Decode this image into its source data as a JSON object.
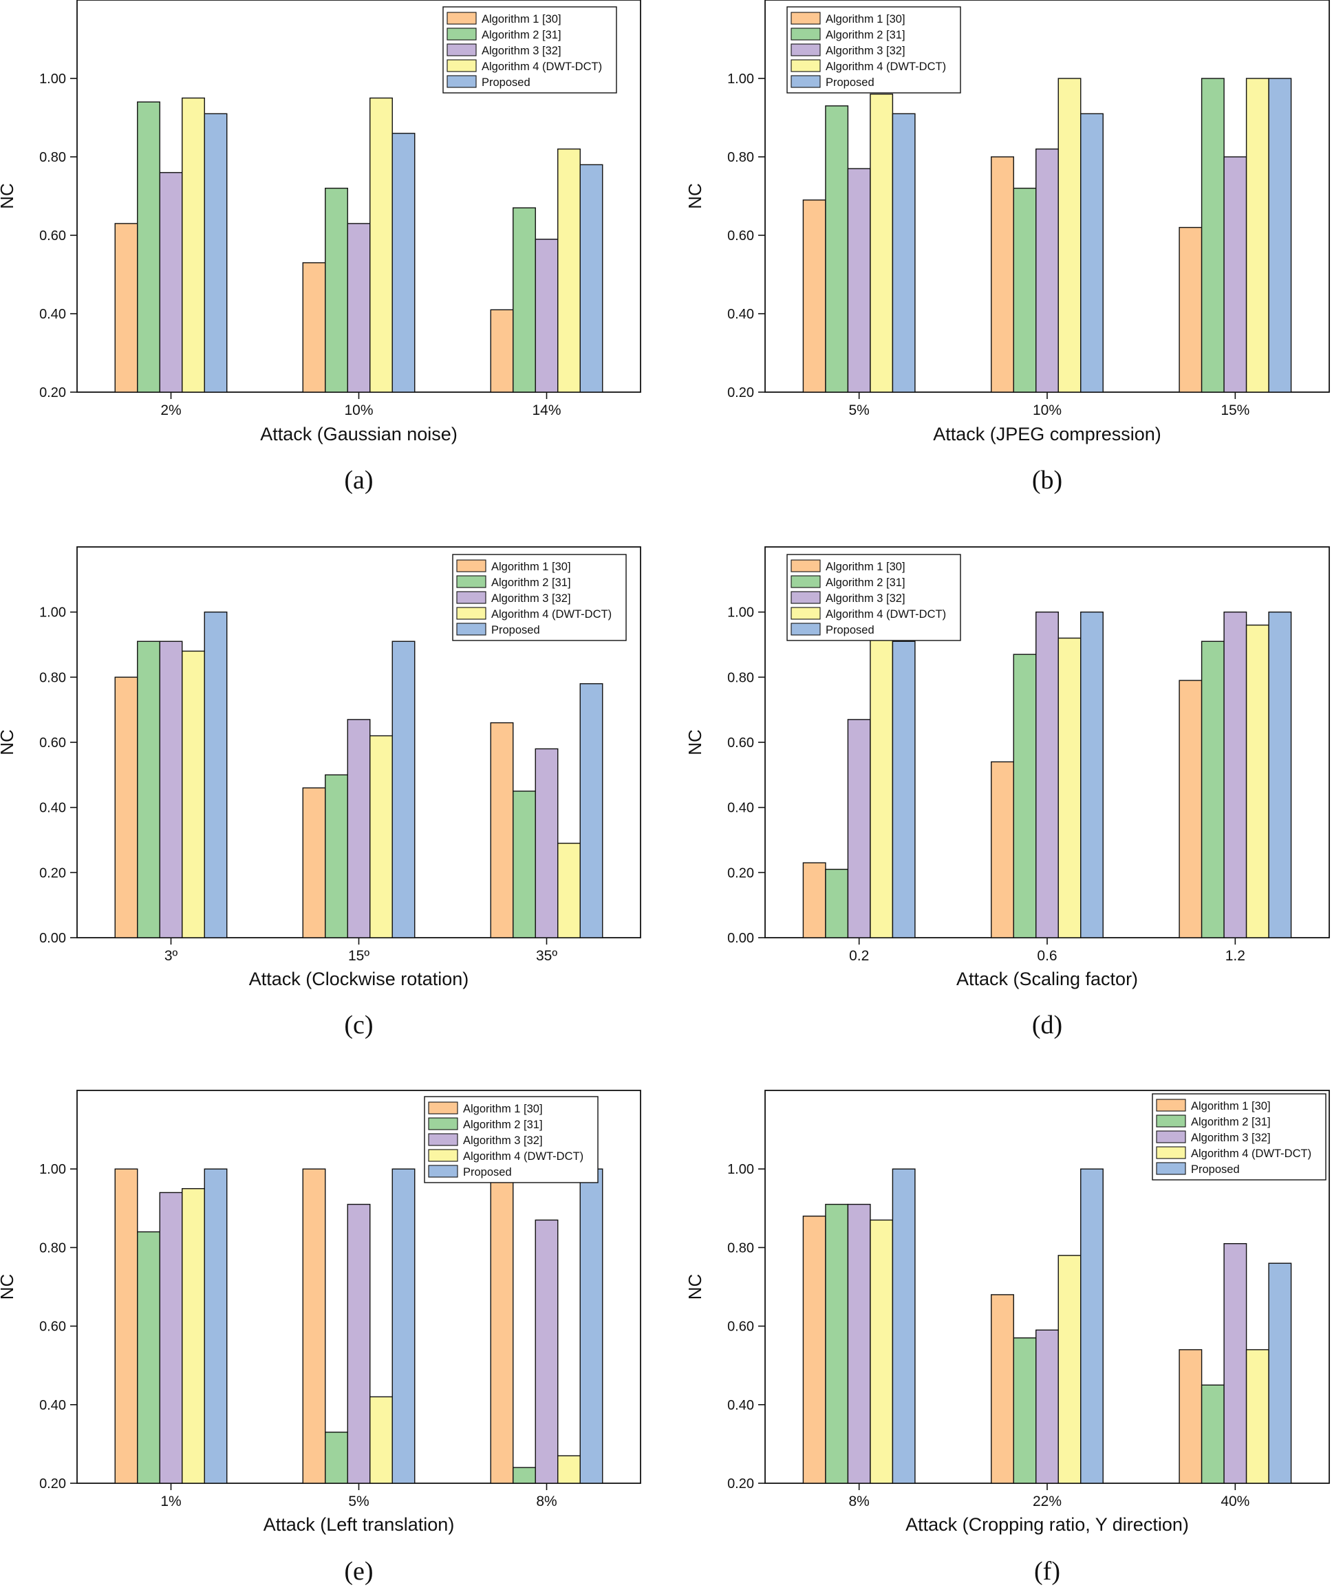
{
  "colors": {
    "series": [
      "#fdc791",
      "#9dd39c",
      "#c3b2d8",
      "#fbf6a2",
      "#9dbbe1"
    ],
    "stroke": "#111111"
  },
  "chart_data": [
    {
      "type": "bar",
      "panel": "(a)",
      "xlabel": "Attack (Gaussian noise)",
      "ylabel": "NC",
      "ylim": [
        0.2,
        1.2
      ],
      "yticks": [
        "0.20",
        "0.40",
        "0.60",
        "0.80",
        "1.00"
      ],
      "categories": [
        "2%",
        "10%",
        "14%"
      ],
      "legend_position": "top-right",
      "series": [
        {
          "name": "Algorithm 1 [30]",
          "values": [
            0.63,
            0.53,
            0.41
          ]
        },
        {
          "name": "Algorithm 2 [31]",
          "values": [
            0.94,
            0.72,
            0.67
          ]
        },
        {
          "name": "Algorithm 3 [32]",
          "values": [
            0.76,
            0.63,
            0.59
          ]
        },
        {
          "name": "Algorithm 4 (DWT-DCT)",
          "values": [
            0.95,
            0.95,
            0.82
          ]
        },
        {
          "name": "Proposed",
          "values": [
            0.91,
            0.86,
            0.78
          ]
        }
      ]
    },
    {
      "type": "bar",
      "panel": "(b)",
      "xlabel": "Attack (JPEG compression)",
      "ylabel": "NC",
      "ylim": [
        0.2,
        1.2
      ],
      "yticks": [
        "0.20",
        "0.40",
        "0.60",
        "0.80",
        "1.00"
      ],
      "categories": [
        "5%",
        "10%",
        "15%"
      ],
      "legend_position": "top-left",
      "series": [
        {
          "name": "Algorithm 1 [30]",
          "values": [
            0.69,
            0.8,
            0.62
          ]
        },
        {
          "name": "Algorithm 2 [31]",
          "values": [
            0.93,
            0.72,
            1.0
          ]
        },
        {
          "name": "Algorithm 3 [32]",
          "values": [
            0.77,
            0.82,
            0.8
          ]
        },
        {
          "name": "Algorithm 4 (DWT-DCT)",
          "values": [
            0.96,
            1.0,
            1.0
          ]
        },
        {
          "name": "Proposed",
          "values": [
            0.91,
            0.91,
            1.0
          ]
        }
      ]
    },
    {
      "type": "bar",
      "panel": "(c)",
      "xlabel": "Attack (Clockwise rotation)",
      "ylabel": "NC",
      "ylim": [
        0.0,
        1.2
      ],
      "yticks": [
        "0.00",
        "0.20",
        "0.40",
        "0.60",
        "0.80",
        "1.00"
      ],
      "categories": [
        "3º",
        "15º",
        "35º"
      ],
      "legend_position": "top-right",
      "series": [
        {
          "name": "Algorithm 1 [30]",
          "values": [
            0.8,
            0.46,
            0.66
          ]
        },
        {
          "name": "Algorithm 2 [31]",
          "values": [
            0.91,
            0.5,
            0.45
          ]
        },
        {
          "name": "Algorithm 3 [32]",
          "values": [
            0.91,
            0.67,
            0.58
          ]
        },
        {
          "name": "Algorithm 4 (DWT-DCT)",
          "values": [
            0.88,
            0.62,
            0.29
          ]
        },
        {
          "name": "Proposed",
          "values": [
            1.0,
            0.91,
            0.78
          ]
        }
      ]
    },
    {
      "type": "bar",
      "panel": "(d)",
      "xlabel": "Attack (Scaling factor)",
      "ylabel": "NC",
      "ylim": [
        0.0,
        1.2
      ],
      "yticks": [
        "0.00",
        "0.20",
        "0.40",
        "0.60",
        "0.80",
        "1.00"
      ],
      "categories": [
        "0.2",
        "0.6",
        "1.2"
      ],
      "legend_position": "top-left",
      "series": [
        {
          "name": "Algorithm 1 [30]",
          "values": [
            0.23,
            0.54,
            0.79
          ]
        },
        {
          "name": "Algorithm 2 [31]",
          "values": [
            0.21,
            0.87,
            0.91
          ]
        },
        {
          "name": "Algorithm 3 [32]",
          "values": [
            0.67,
            1.0,
            1.0
          ]
        },
        {
          "name": "Algorithm 4 (DWT-DCT)",
          "values": [
            0.92,
            0.92,
            0.96
          ]
        },
        {
          "name": "Proposed",
          "values": [
            0.91,
            1.0,
            1.0
          ]
        }
      ]
    },
    {
      "type": "bar",
      "panel": "(e)",
      "xlabel": "Attack (Left translation)",
      "ylabel": "NC",
      "ylim": [
        0.2,
        1.2
      ],
      "yticks": [
        "0.20",
        "0.40",
        "0.60",
        "0.80",
        "1.00"
      ],
      "categories": [
        "1%",
        "5%",
        "8%"
      ],
      "legend_position": "top-right",
      "series": [
        {
          "name": "Algorithm 1 [30]",
          "values": [
            1.0,
            1.0,
            1.0
          ]
        },
        {
          "name": "Algorithm 2 [31]",
          "values": [
            0.84,
            0.33,
            0.24
          ]
        },
        {
          "name": "Algorithm 3 [32]",
          "values": [
            0.94,
            0.91,
            0.87
          ]
        },
        {
          "name": "Algorithm 4 (DWT-DCT)",
          "values": [
            0.95,
            0.42,
            0.27
          ]
        },
        {
          "name": "Proposed",
          "values": [
            1.0,
            1.0,
            1.0
          ]
        }
      ]
    },
    {
      "type": "bar",
      "panel": "(f)",
      "xlabel": "Attack (Cropping ratio, Y direction)",
      "ylabel": "NC",
      "ylim": [
        0.2,
        1.2
      ],
      "yticks": [
        "0.20",
        "0.40",
        "0.60",
        "0.80",
        "1.00"
      ],
      "categories": [
        "8%",
        "22%",
        "40%"
      ],
      "legend_position": "top-right",
      "series": [
        {
          "name": "Algorithm 1 [30]",
          "values": [
            0.88,
            0.68,
            0.54
          ]
        },
        {
          "name": "Algorithm 2 [31]",
          "values": [
            0.91,
            0.57,
            0.45
          ]
        },
        {
          "name": "Algorithm 3 [32]",
          "values": [
            0.91,
            0.59,
            0.81
          ]
        },
        {
          "name": "Algorithm 4 (DWT-DCT)",
          "values": [
            0.87,
            0.78,
            0.54
          ]
        },
        {
          "name": "Proposed",
          "values": [
            1.0,
            1.0,
            0.76
          ]
        }
      ]
    }
  ]
}
